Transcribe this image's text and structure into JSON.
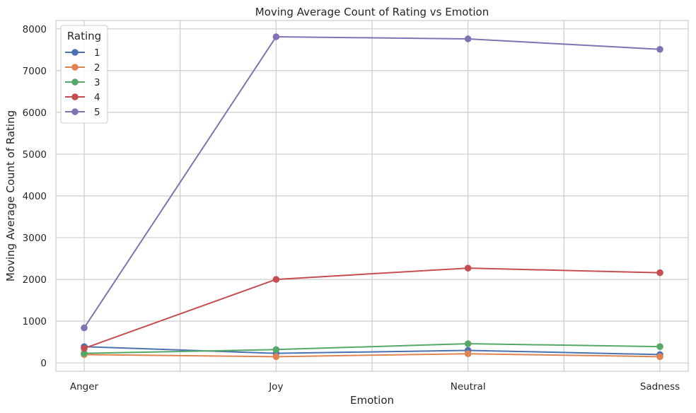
{
  "chart_data": {
    "type": "line",
    "title": "Moving Average Count of Rating vs Emotion",
    "xlabel": "Emotion",
    "ylabel": "Moving Average Count of Rating",
    "categories": [
      "Anger",
      "Joy",
      "Neutral",
      "Sadness"
    ],
    "ylim": [
      -200,
      8200
    ],
    "yticks": [
      0,
      1000,
      2000,
      3000,
      4000,
      5000,
      6000,
      7000,
      8000
    ],
    "grid": true,
    "legend": {
      "title": "Rating",
      "placement": "top-left"
    },
    "series": [
      {
        "name": "1",
        "color": "#4c72b0",
        "values": [
          390,
          230,
          300,
          200
        ]
      },
      {
        "name": "2",
        "color": "#dd8452",
        "values": [
          200,
          150,
          220,
          150
        ]
      },
      {
        "name": "3",
        "color": "#55a868",
        "values": [
          230,
          320,
          460,
          390
        ]
      },
      {
        "name": "4",
        "color": "#c44e52",
        "values": [
          350,
          2000,
          2270,
          2160
        ]
      },
      {
        "name": "5",
        "color": "#8172b3",
        "values": [
          840,
          7810,
          7760,
          7510
        ]
      }
    ]
  }
}
